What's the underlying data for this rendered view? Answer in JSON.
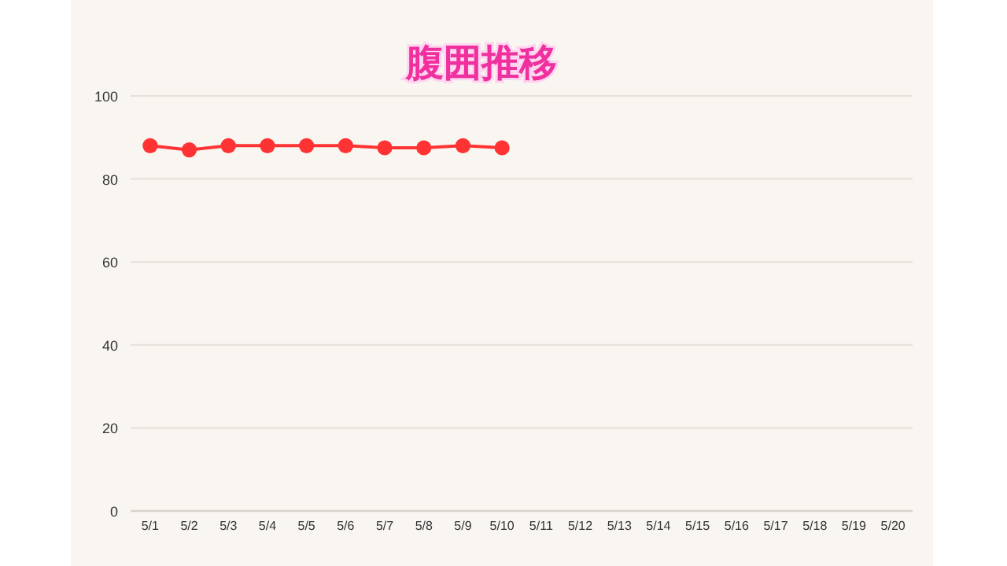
{
  "chart_data": {
    "type": "line",
    "title": "腹囲推移",
    "categories": [
      "5/1",
      "5/2",
      "5/3",
      "5/4",
      "5/5",
      "5/6",
      "5/7",
      "5/8",
      "5/9",
      "5/10",
      "5/11",
      "5/12",
      "5/13",
      "5/14",
      "5/15",
      "5/16",
      "5/17",
      "5/18",
      "5/19",
      "5/20"
    ],
    "series": [
      {
        "color": "#ff3333",
        "values": [
          88,
          87,
          88,
          88,
          88,
          88,
          87.5,
          87.5,
          88,
          87.5,
          null,
          null,
          null,
          null,
          null,
          null,
          null,
          null,
          null,
          null
        ]
      }
    ],
    "ylim": [
      0,
      100
    ],
    "yticks": [
      0,
      20,
      40,
      60,
      80,
      100
    ],
    "grid": "y",
    "marker": "circle",
    "line_style": "solid"
  }
}
